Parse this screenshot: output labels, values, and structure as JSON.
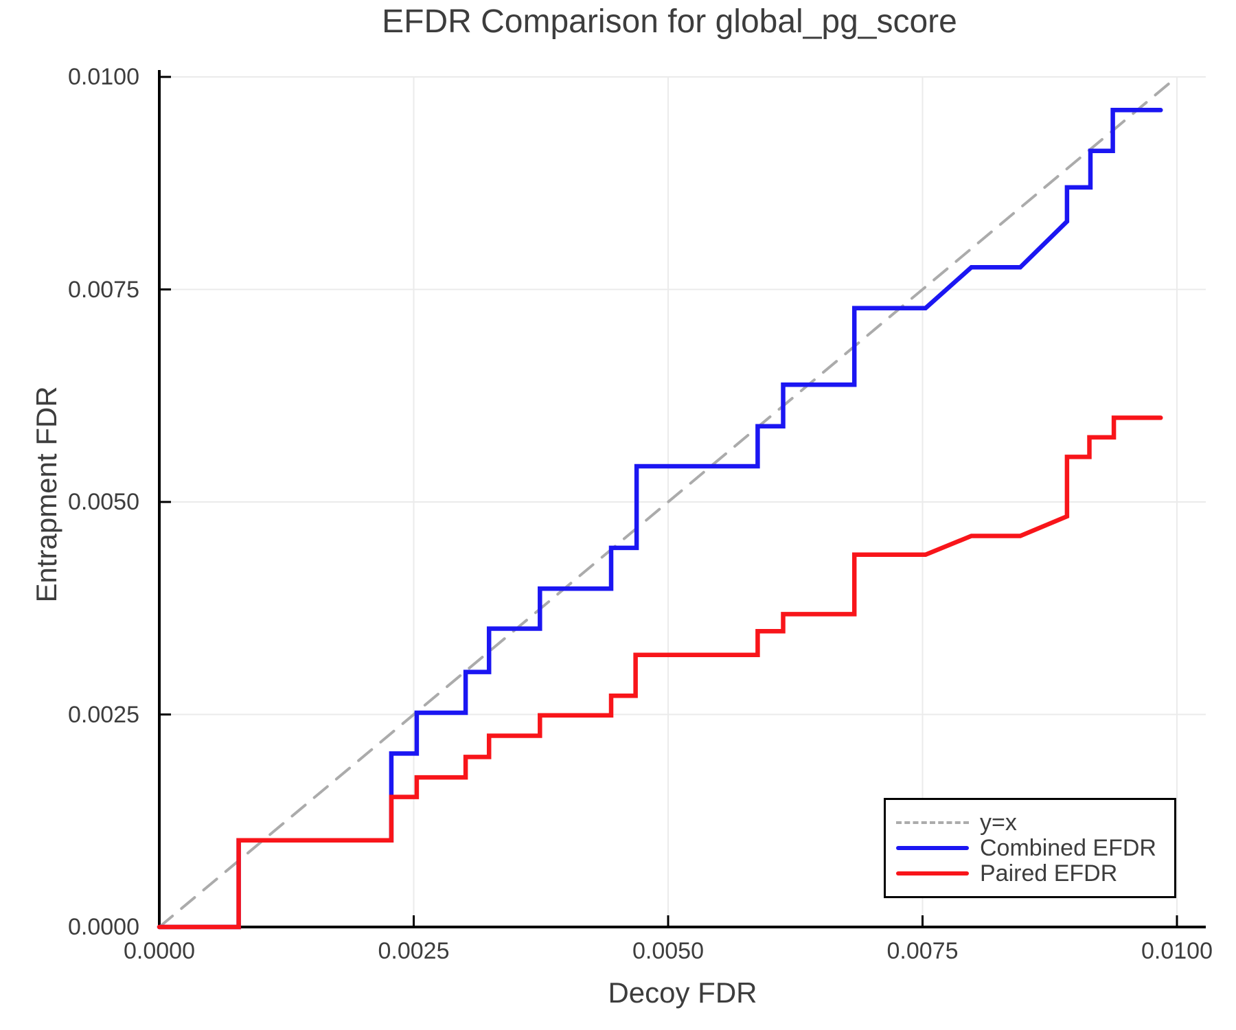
{
  "chart_data": {
    "type": "line",
    "title": "EFDR Comparison for global_pg_score",
    "xlabel": "Decoy FDR",
    "ylabel": "Entrapment FDR",
    "xlim": [
      0,
      0.01
    ],
    "ylim": [
      0,
      0.01
    ],
    "grid": true,
    "x_ticks": [
      0,
      0.0025,
      0.005,
      0.0075,
      0.01
    ],
    "x_tick_labels": [
      "0.0000",
      "0.0025",
      "0.0050",
      "0.0075",
      "0.0100"
    ],
    "y_ticks": [
      0,
      0.0025,
      0.005,
      0.0075,
      0.01
    ],
    "y_tick_labels": [
      "0.0000",
      "0.0025",
      "0.0050",
      "0.0075",
      "0.0100"
    ],
    "legend_position": "bottom-right",
    "colors": {
      "grid": "#ebebeb",
      "spine": "#000000",
      "text": "#3d3d3d",
      "identity_line": "#ababab",
      "combined": "#1b16f2",
      "paired": "#f8151a"
    },
    "series": [
      {
        "name": "y=x",
        "color": "#ababab",
        "style": "dashed",
        "width": 4,
        "points": [
          [
            0,
            0
          ],
          [
            0.01,
            0.01
          ]
        ]
      },
      {
        "name": "Combined EFDR",
        "color": "#1b16f2",
        "style": "solid",
        "width": 6.5,
        "points": [
          [
            0,
            0
          ],
          [
            0.00078,
            0
          ],
          [
            0.00078,
            0.00102
          ],
          [
            0.00228,
            0.00102
          ],
          [
            0.00228,
            0.00204
          ],
          [
            0.00253,
            0.00204
          ],
          [
            0.00253,
            0.00252
          ],
          [
            0.00301,
            0.00252
          ],
          [
            0.00301,
            0.003
          ],
          [
            0.00324,
            0.003
          ],
          [
            0.00324,
            0.00351
          ],
          [
            0.00374,
            0.00351
          ],
          [
            0.00374,
            0.00398
          ],
          [
            0.00444,
            0.00398
          ],
          [
            0.00444,
            0.00446
          ],
          [
            0.00469,
            0.00446
          ],
          [
            0.00469,
            0.00542
          ],
          [
            0.00588,
            0.00542
          ],
          [
            0.00588,
            0.00589
          ],
          [
            0.00613,
            0.00589
          ],
          [
            0.00613,
            0.00638
          ],
          [
            0.00683,
            0.00638
          ],
          [
            0.00683,
            0.00728
          ],
          [
            0.00753,
            0.00728
          ],
          [
            0.00798,
            0.00776
          ],
          [
            0.00846,
            0.00776
          ],
          [
            0.00892,
            0.0083
          ],
          [
            0.00892,
            0.0087
          ],
          [
            0.00915,
            0.0087
          ],
          [
            0.00915,
            0.00913
          ],
          [
            0.00937,
            0.00913
          ],
          [
            0.00937,
            0.00961
          ],
          [
            0.00984,
            0.00961
          ]
        ]
      },
      {
        "name": "Paired EFDR",
        "color": "#f8151a",
        "style": "solid",
        "width": 6.5,
        "points": [
          [
            0,
            0
          ],
          [
            0.00078,
            0
          ],
          [
            0.00078,
            0.00102
          ],
          [
            0.00228,
            0.00102
          ],
          [
            0.00228,
            0.00153
          ],
          [
            0.00253,
            0.00153
          ],
          [
            0.00253,
            0.00176
          ],
          [
            0.00301,
            0.00176
          ],
          [
            0.00301,
            0.002
          ],
          [
            0.00324,
            0.002
          ],
          [
            0.00324,
            0.00225
          ],
          [
            0.00374,
            0.00225
          ],
          [
            0.00374,
            0.00249
          ],
          [
            0.00444,
            0.00249
          ],
          [
            0.00444,
            0.00272
          ],
          [
            0.00468,
            0.00272
          ],
          [
            0.00468,
            0.0032
          ],
          [
            0.00588,
            0.0032
          ],
          [
            0.00588,
            0.00348
          ],
          [
            0.00613,
            0.00348
          ],
          [
            0.00613,
            0.00368
          ],
          [
            0.00683,
            0.00368
          ],
          [
            0.00683,
            0.00438
          ],
          [
            0.00753,
            0.00438
          ],
          [
            0.00798,
            0.0046
          ],
          [
            0.00846,
            0.0046
          ],
          [
            0.00892,
            0.00483
          ],
          [
            0.00892,
            0.00553
          ],
          [
            0.00914,
            0.00553
          ],
          [
            0.00914,
            0.00576
          ],
          [
            0.00938,
            0.00576
          ],
          [
            0.00938,
            0.00599
          ],
          [
            0.00984,
            0.00599
          ]
        ]
      }
    ]
  }
}
